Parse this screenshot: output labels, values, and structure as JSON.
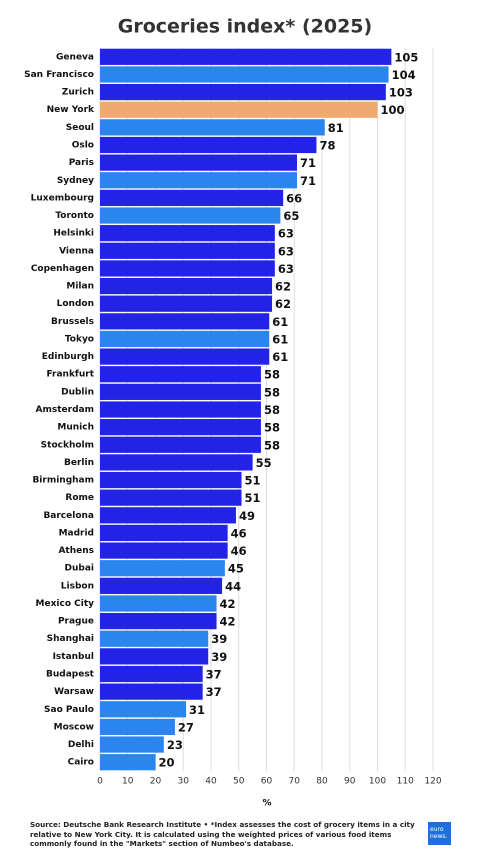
{
  "chart_data": {
    "type": "bar",
    "orientation": "horizontal",
    "title": "Groceries index* (2025)",
    "categories": [
      "Geneva",
      "San Francisco",
      "Zurich",
      "New York",
      "Seoul",
      "Oslo",
      "Paris",
      "Sydney",
      "Luxembourg",
      "Toronto",
      "Helsinki",
      "Vienna",
      "Copenhagen",
      "Milan",
      "London",
      "Brussels",
      "Tokyo",
      "Edinburgh",
      "Frankfurt",
      "Dublin",
      "Amsterdam",
      "Munich",
      "Stockholm",
      "Berlin",
      "Birmingham",
      "Rome",
      "Barcelona",
      "Madrid",
      "Athens",
      "Dubai",
      "Lisbon",
      "Mexico City",
      "Prague",
      "Shanghai",
      "Istanbul",
      "Budapest",
      "Warsaw",
      "Sao Paulo",
      "Moscow",
      "Delhi",
      "Cairo"
    ],
    "values": [
      105,
      104,
      103,
      100,
      81,
      78,
      71,
      71,
      66,
      65,
      63,
      63,
      63,
      62,
      62,
      61,
      61,
      61,
      58,
      58,
      58,
      58,
      58,
      55,
      51,
      51,
      49,
      46,
      46,
      45,
      44,
      42,
      42,
      39,
      39,
      37,
      37,
      31,
      27,
      23,
      20
    ],
    "colors": [
      "#2323e6",
      "#2a86ee",
      "#2323e6",
      "#f0a96e",
      "#2a86ee",
      "#2323e6",
      "#2323e6",
      "#2a86ee",
      "#2323e6",
      "#2a86ee",
      "#2323e6",
      "#2323e6",
      "#2323e6",
      "#2323e6",
      "#2323e6",
      "#2323e6",
      "#2a86ee",
      "#2323e6",
      "#2323e6",
      "#2323e6",
      "#2323e6",
      "#2323e6",
      "#2323e6",
      "#2323e6",
      "#2323e6",
      "#2323e6",
      "#2323e6",
      "#2323e6",
      "#2323e6",
      "#2a86ee",
      "#2323e6",
      "#2a86ee",
      "#2323e6",
      "#2a86ee",
      "#2323e6",
      "#2323e6",
      "#2323e6",
      "#2a86ee",
      "#2a86ee",
      "#2a86ee",
      "#2a86ee"
    ],
    "xlim": [
      0,
      120
    ],
    "xticks": [
      0,
      10,
      20,
      30,
      40,
      50,
      60,
      70,
      80,
      90,
      100,
      110,
      120
    ],
    "x_label": "%",
    "grid": true,
    "source": "Source: Deutsche Bank Research Institute",
    "note": "• *Index assesses the cost of grocery items in a city relative to New York City. It is calculated using the weighted prices of various food items commonly found in the \"Markets\" section of Numbeo's database."
  },
  "logo": {
    "line1": "euro",
    "line2": "news."
  }
}
